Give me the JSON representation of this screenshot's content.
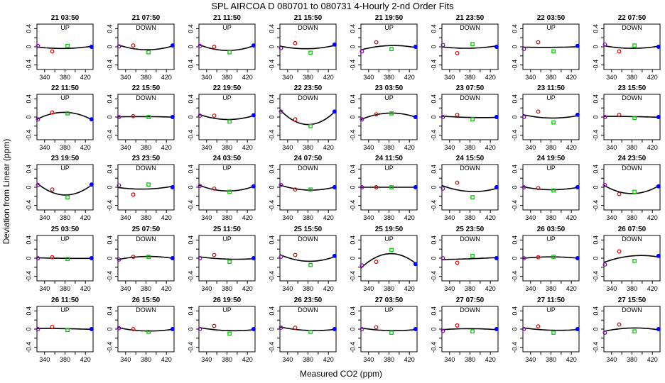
{
  "chart_data": {
    "type": "scatter",
    "title": "SPL   AIRCOA D   080701 to 080731   4-Hourly 2-nd Order Fits",
    "xlabel": "Measured CO2 (ppm)",
    "ylabel": "Deviation from Linear (ppm)",
    "xlim": [
      325,
      435
    ],
    "ylim": [
      -0.5,
      0.5
    ],
    "x_ticks": [
      340,
      360,
      380,
      400,
      420
    ],
    "x_tick_labels": [
      "340",
      "",
      "380",
      "",
      "420"
    ],
    "y_ticks": [
      -0.4,
      -0.2,
      0,
      0.2,
      0.4
    ],
    "y_tick_labels": [
      "-0.4",
      "",
      "0",
      "",
      "0.4"
    ],
    "standards_x": [
      327,
      355,
      385,
      432
    ],
    "marker_colors": [
      "#9900cc",
      "#ff0000",
      "#00cc00",
      "#0000ff"
    ],
    "panels": [
      {
        "time": "21 03:50",
        "dir": "UP",
        "y": [
          0.02,
          -0.1,
          0.02,
          0.0
        ]
      },
      {
        "time": "21 07:50",
        "dir": "DOWN",
        "y": [
          0.01,
          0.03,
          -0.12,
          0.03
        ]
      },
      {
        "time": "21 11:50",
        "dir": "UP",
        "y": [
          0.02,
          0.0,
          -0.12,
          0.03
        ]
      },
      {
        "time": "21 15:50",
        "dir": "DOWN",
        "y": [
          -0.03,
          0.08,
          -0.13,
          0.05
        ]
      },
      {
        "time": "21 19:50",
        "dir": "UP",
        "y": [
          -0.1,
          0.1,
          -0.05,
          0.0
        ]
      },
      {
        "time": "21 23:50",
        "dir": "DOWN",
        "y": [
          0.04,
          -0.14,
          0.06,
          0.0
        ]
      },
      {
        "time": "22 03:50",
        "dir": "UP",
        "y": [
          -0.05,
          0.1,
          -0.1,
          0.02
        ]
      },
      {
        "time": "22 07:50",
        "dir": "DOWN",
        "y": [
          0.05,
          -0.1,
          0.03,
          0.0
        ]
      },
      {
        "time": "22 11:50",
        "dir": "UP",
        "y": [
          -0.05,
          0.1,
          0.08,
          -0.05
        ]
      },
      {
        "time": "22 15:50",
        "dir": "DOWN",
        "y": [
          0.0,
          0.02,
          0.0,
          0.0
        ]
      },
      {
        "time": "22 19:50",
        "dir": "UP",
        "y": [
          0.03,
          0.03,
          -0.1,
          0.04
        ]
      },
      {
        "time": "22 23:50",
        "dir": "DOWN",
        "y": [
          0.12,
          -0.05,
          -0.2,
          0.12
        ]
      },
      {
        "time": "23 03:50",
        "dir": "UP",
        "y": [
          -0.05,
          0.06,
          0.08,
          0.0
        ]
      },
      {
        "time": "23 07:50",
        "dir": "DOWN",
        "y": [
          0.0,
          0.05,
          -0.05,
          0.0
        ]
      },
      {
        "time": "23 11:50",
        "dir": "UP",
        "y": [
          0.0,
          0.12,
          -0.12,
          0.05
        ]
      },
      {
        "time": "23 15:50",
        "dir": "DOWN",
        "y": [
          0.0,
          0.05,
          -0.02,
          0.0
        ]
      },
      {
        "time": "23 19:50",
        "dir": "UP",
        "y": [
          0.05,
          -0.05,
          -0.22,
          0.06
        ]
      },
      {
        "time": "23 23:50",
        "dir": "DOWN",
        "y": [
          0.04,
          -0.16,
          0.06,
          0.0
        ]
      },
      {
        "time": "24 03:50",
        "dir": "UP",
        "y": [
          0.03,
          -0.03,
          -0.1,
          0.02
        ]
      },
      {
        "time": "24 07:50",
        "dir": "DOWN",
        "y": [
          0.05,
          -0.05,
          -0.05,
          0.0
        ]
      },
      {
        "time": "24 11:50",
        "dir": "UP",
        "y": [
          0.0,
          0.0,
          0.0,
          0.0
        ]
      },
      {
        "time": "24 15:50",
        "dir": "DOWN",
        "y": [
          -0.03,
          0.1,
          -0.22,
          0.0
        ]
      },
      {
        "time": "24 19:50",
        "dir": "UP",
        "y": [
          0.0,
          -0.02,
          -0.07,
          0.0
        ]
      },
      {
        "time": "24 23:50",
        "dir": "DOWN",
        "y": [
          0.05,
          -0.15,
          -0.1,
          0.02
        ]
      },
      {
        "time": "25 03:50",
        "dir": "UP",
        "y": [
          0.0,
          0.02,
          -0.02,
          0.0
        ]
      },
      {
        "time": "25 07:50",
        "dir": "DOWN",
        "y": [
          -0.03,
          0.03,
          0.03,
          0.0
        ]
      },
      {
        "time": "25 11:50",
        "dir": "UP",
        "y": [
          0.0,
          0.07,
          -0.08,
          0.0
        ]
      },
      {
        "time": "25 15:50",
        "dir": "DOWN",
        "y": [
          0.03,
          0.07,
          -0.15,
          0.05
        ]
      },
      {
        "time": "25 19:50",
        "dir": "UP",
        "y": [
          -0.16,
          -0.08,
          0.18,
          -0.13
        ]
      },
      {
        "time": "25 23:50",
        "dir": "DOWN",
        "y": [
          0.0,
          -0.1,
          0.05,
          0.0
        ]
      },
      {
        "time": "26 03:50",
        "dir": "UP",
        "y": [
          0.0,
          0.02,
          0.03,
          0.0
        ]
      },
      {
        "time": "26 07:50",
        "dir": "DOWN",
        "y": [
          -0.14,
          0.15,
          -0.06,
          0.05
        ]
      },
      {
        "time": "26 11:50",
        "dir": "UP",
        "y": [
          0.0,
          0.05,
          -0.02,
          0.0
        ]
      },
      {
        "time": "26 15:50",
        "dir": "DOWN",
        "y": [
          0.02,
          0.0,
          -0.06,
          0.0
        ]
      },
      {
        "time": "26 19:50",
        "dir": "UP",
        "y": [
          0.0,
          0.07,
          -0.1,
          0.0
        ]
      },
      {
        "time": "26 23:50",
        "dir": "DOWN",
        "y": [
          0.03,
          0.03,
          -0.06,
          0.0
        ]
      },
      {
        "time": "27 03:50",
        "dir": "UP",
        "y": [
          0.0,
          0.04,
          -0.08,
          0.0
        ]
      },
      {
        "time": "27 07:50",
        "dir": "DOWN",
        "y": [
          -0.04,
          0.08,
          -0.05,
          0.0
        ]
      },
      {
        "time": "27 11:50",
        "dir": "UP",
        "y": [
          0.0,
          0.06,
          -0.08,
          0.0
        ]
      },
      {
        "time": "27 15:50",
        "dir": "DOWN",
        "y": [
          -0.08,
          0.1,
          -0.05,
          0.0
        ]
      }
    ]
  }
}
